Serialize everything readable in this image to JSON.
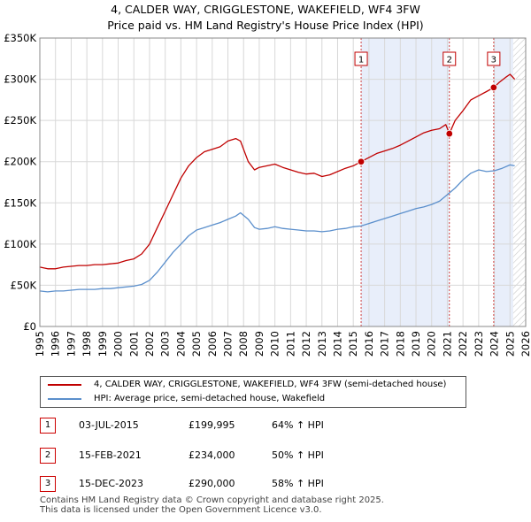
{
  "title_line1": "4, CALDER WAY, CRIGGLESTONE, WAKEFIELD, WF4 3FW",
  "title_line2": "Price paid vs. HM Land Registry's House Price Index (HPI)",
  "chart_data": {
    "type": "line",
    "title": "4, CALDER WAY, CRIGGLESTONE, WAKEFIELD, WF4 3FW — Price paid vs. HM Land Registry's House Price Index (HPI)",
    "xlim": [
      1995,
      2026
    ],
    "ylim": [
      0,
      350000
    ],
    "y_ticks": [
      0,
      50000,
      100000,
      150000,
      200000,
      250000,
      300000,
      350000
    ],
    "y_tick_labels": [
      "£0",
      "£50K",
      "£100K",
      "£150K",
      "£200K",
      "£250K",
      "£300K",
      "£350K"
    ],
    "x_ticks": [
      1995,
      1996,
      1997,
      1998,
      1999,
      2000,
      2001,
      2002,
      2003,
      2004,
      2005,
      2006,
      2007,
      2008,
      2009,
      2010,
      2011,
      2012,
      2013,
      2014,
      2015,
      2016,
      2017,
      2018,
      2019,
      2020,
      2021,
      2022,
      2023,
      2024,
      2025,
      2026
    ],
    "x_tick_labels": [
      "1995",
      "1996",
      "1997",
      "1998",
      "1999",
      "2000",
      "2001",
      "2002",
      "2003",
      "2004",
      "2005",
      "2006",
      "2007",
      "2008",
      "2009",
      "2010",
      "2011",
      "2012",
      "2013",
      "2014",
      "2015",
      "2016",
      "2017",
      "2018",
      "2019",
      "2020",
      "2021",
      "2022",
      "2023",
      "2024",
      "2025",
      "2026"
    ],
    "colors": {
      "property": "#c00000",
      "hpi": "#5b8fcc",
      "shade": "#e8eefa",
      "grid": "#d8d8d8"
    },
    "series": [
      {
        "name": "4, CALDER WAY, CRIGGLESTONE, WAKEFIELD, WF4 3FW (semi-detached house)",
        "color": "#c00000",
        "x": [
          1995.0,
          1995.5,
          1996.0,
          1996.5,
          1997.0,
          1997.5,
          1998.0,
          1998.5,
          1999.0,
          1999.5,
          2000.0,
          2000.5,
          2001.0,
          2001.5,
          2002.0,
          2002.5,
          2003.0,
          2003.5,
          2004.0,
          2004.5,
          2005.0,
          2005.5,
          2006.0,
          2006.5,
          2007.0,
          2007.5,
          2007.8,
          2008.3,
          2008.7,
          2009.0,
          2009.5,
          2010.0,
          2010.5,
          2011.0,
          2011.5,
          2012.0,
          2012.5,
          2013.0,
          2013.5,
          2014.0,
          2014.5,
          2015.0,
          2015.5,
          2016.0,
          2016.5,
          2017.0,
          2017.5,
          2018.0,
          2018.5,
          2019.0,
          2019.5,
          2020.0,
          2020.5,
          2020.9,
          2021.13,
          2021.5,
          2022.0,
          2022.5,
          2023.0,
          2023.5,
          2023.96,
          2024.3,
          2024.7,
          2025.0,
          2025.3
        ],
        "y": [
          72000,
          70000,
          70000,
          72000,
          73000,
          74000,
          74000,
          75000,
          75000,
          76000,
          77000,
          80000,
          82000,
          88000,
          100000,
          120000,
          140000,
          160000,
          180000,
          195000,
          205000,
          212000,
          215000,
          218000,
          225000,
          228000,
          225000,
          200000,
          190000,
          193000,
          195000,
          197000,
          193000,
          190000,
          187000,
          185000,
          186000,
          182000,
          184000,
          188000,
          192000,
          195000,
          199995,
          205000,
          210000,
          213000,
          216000,
          220000,
          225000,
          230000,
          235000,
          238000,
          240000,
          245000,
          234000,
          250000,
          262000,
          275000,
          280000,
          285000,
          290000,
          296000,
          302000,
          306000,
          300000
        ]
      },
      {
        "name": "HPI: Average price, semi-detached house, Wakefield",
        "color": "#5b8fcc",
        "x": [
          1995.0,
          1995.5,
          1996.0,
          1996.5,
          1997.0,
          1997.5,
          1998.0,
          1998.5,
          1999.0,
          1999.5,
          2000.0,
          2000.5,
          2001.0,
          2001.5,
          2002.0,
          2002.5,
          2003.0,
          2003.5,
          2004.0,
          2004.5,
          2005.0,
          2005.5,
          2006.0,
          2006.5,
          2007.0,
          2007.5,
          2007.8,
          2008.3,
          2008.7,
          2009.0,
          2009.5,
          2010.0,
          2010.5,
          2011.0,
          2011.5,
          2012.0,
          2012.5,
          2013.0,
          2013.5,
          2014.0,
          2014.5,
          2015.0,
          2015.5,
          2016.0,
          2016.5,
          2017.0,
          2017.5,
          2018.0,
          2018.5,
          2019.0,
          2019.5,
          2020.0,
          2020.5,
          2021.0,
          2021.5,
          2022.0,
          2022.5,
          2023.0,
          2023.5,
          2024.0,
          2024.5,
          2025.0,
          2025.3
        ],
        "y": [
          43000,
          42000,
          43000,
          43000,
          44000,
          45000,
          45000,
          45000,
          46000,
          46000,
          47000,
          48000,
          49000,
          51000,
          56000,
          66000,
          78000,
          90000,
          100000,
          110000,
          117000,
          120000,
          123000,
          126000,
          130000,
          134000,
          138000,
          130000,
          120000,
          118000,
          119000,
          121000,
          119000,
          118000,
          117000,
          116000,
          116000,
          115000,
          116000,
          118000,
          119000,
          121000,
          122000,
          125000,
          128000,
          131000,
          134000,
          137000,
          140000,
          143000,
          145000,
          148000,
          152000,
          160000,
          168000,
          178000,
          186000,
          190000,
          188000,
          189000,
          192000,
          196000,
          195000
        ]
      }
    ],
    "sales": [
      {
        "marker": "1",
        "x": 2015.5,
        "y": 199995
      },
      {
        "marker": "2",
        "x": 2021.13,
        "y": 234000
      },
      {
        "marker": "3",
        "x": 2023.96,
        "y": 290000
      }
    ],
    "shaded_ranges": [
      [
        2015.5,
        2021.13
      ],
      [
        2023.96,
        2025.2
      ]
    ],
    "hatched_from": 2025.2
  },
  "legend": {
    "property_label": "4, CALDER WAY, CRIGGLESTONE, WAKEFIELD, WF4 3FW (semi-detached house)",
    "hpi_label": "HPI: Average price, semi-detached house, Wakefield"
  },
  "sales_table": [
    {
      "marker": "1",
      "date": "03-JUL-2015",
      "price": "£199,995",
      "hpi": "64% ↑ HPI"
    },
    {
      "marker": "2",
      "date": "15-FEB-2021",
      "price": "£234,000",
      "hpi": "50% ↑ HPI"
    },
    {
      "marker": "3",
      "date": "15-DEC-2023",
      "price": "£290,000",
      "hpi": "58% ↑ HPI"
    }
  ],
  "footer": {
    "line1": "Contains HM Land Registry data © Crown copyright and database right 2025.",
    "line2": "This data is licensed under the Open Government Licence v3.0."
  }
}
